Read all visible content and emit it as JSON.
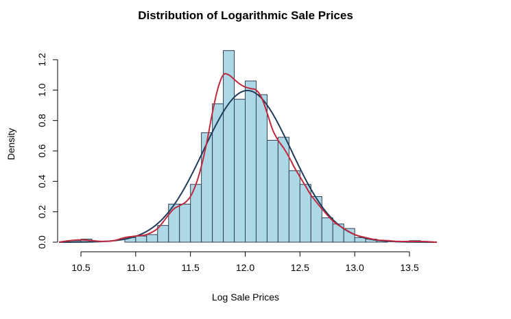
{
  "chart_data": {
    "type": "bar",
    "title": "Distribution of Logarithmic Sale Prices",
    "xlabel": "Log Sale Prices",
    "ylabel": "Density",
    "xlim": [
      10.3,
      13.75
    ],
    "ylim": [
      0,
      1.25
    ],
    "x_ticks": [
      "10.5",
      "11.0",
      "11.5",
      "12.0",
      "12.5",
      "13.0",
      "13.5"
    ],
    "y_ticks": [
      "0.0",
      "0.2",
      "0.4",
      "0.6",
      "0.8",
      "1.0",
      "1.2"
    ],
    "bin_width": 0.1,
    "bins": [
      {
        "start": 10.4,
        "end": 10.5,
        "density": 0.01
      },
      {
        "start": 10.5,
        "end": 10.6,
        "density": 0.02
      },
      {
        "start": 10.6,
        "end": 10.7,
        "density": 0.0
      },
      {
        "start": 10.7,
        "end": 10.8,
        "density": 0.0
      },
      {
        "start": 10.8,
        "end": 10.9,
        "density": 0.0
      },
      {
        "start": 10.9,
        "end": 11.0,
        "density": 0.03
      },
      {
        "start": 11.0,
        "end": 11.1,
        "density": 0.04
      },
      {
        "start": 11.1,
        "end": 11.2,
        "density": 0.05
      },
      {
        "start": 11.2,
        "end": 11.3,
        "density": 0.11
      },
      {
        "start": 11.3,
        "end": 11.4,
        "density": 0.25
      },
      {
        "start": 11.4,
        "end": 11.5,
        "density": 0.25
      },
      {
        "start": 11.5,
        "end": 11.6,
        "density": 0.38
      },
      {
        "start": 11.6,
        "end": 11.7,
        "density": 0.72
      },
      {
        "start": 11.7,
        "end": 11.8,
        "density": 0.91
      },
      {
        "start": 11.8,
        "end": 11.9,
        "density": 1.26
      },
      {
        "start": 11.9,
        "end": 12.0,
        "density": 0.94
      },
      {
        "start": 12.0,
        "end": 12.1,
        "density": 1.06
      },
      {
        "start": 12.1,
        "end": 12.2,
        "density": 0.97
      },
      {
        "start": 12.2,
        "end": 12.3,
        "density": 0.67
      },
      {
        "start": 12.3,
        "end": 12.4,
        "density": 0.69
      },
      {
        "start": 12.4,
        "end": 12.5,
        "density": 0.47
      },
      {
        "start": 12.5,
        "end": 12.6,
        "density": 0.38
      },
      {
        "start": 12.6,
        "end": 12.7,
        "density": 0.3
      },
      {
        "start": 12.7,
        "end": 12.8,
        "density": 0.16
      },
      {
        "start": 12.8,
        "end": 12.9,
        "density": 0.12
      },
      {
        "start": 12.9,
        "end": 13.0,
        "density": 0.09
      },
      {
        "start": 13.0,
        "end": 13.1,
        "density": 0.03
      },
      {
        "start": 13.1,
        "end": 13.2,
        "density": 0.02
      },
      {
        "start": 13.2,
        "end": 13.3,
        "density": 0.01
      },
      {
        "start": 13.3,
        "end": 13.4,
        "density": 0.0
      },
      {
        "start": 13.4,
        "end": 13.5,
        "density": 0.0
      },
      {
        "start": 13.5,
        "end": 13.6,
        "density": 0.01
      }
    ],
    "series": [
      {
        "color": "#c0283e",
        "x": [
          10.3,
          10.4,
          10.5,
          10.6,
          10.7,
          10.8,
          10.9,
          11.0,
          11.1,
          11.2,
          11.3,
          11.35,
          11.4,
          11.45,
          11.5,
          11.55,
          11.6,
          11.65,
          11.7,
          11.75,
          11.8,
          11.85,
          11.9,
          11.95,
          12.0,
          12.05,
          12.1,
          12.15,
          12.2,
          12.25,
          12.3,
          12.35,
          12.4,
          12.45,
          12.5,
          12.55,
          12.6,
          12.7,
          12.8,
          12.9,
          13.0,
          13.1,
          13.2,
          13.3,
          13.4,
          13.5,
          13.6,
          13.75
        ],
        "y": [
          0.0,
          0.01,
          0.015,
          0.01,
          0.005,
          0.01,
          0.03,
          0.04,
          0.05,
          0.09,
          0.18,
          0.22,
          0.24,
          0.26,
          0.3,
          0.38,
          0.5,
          0.66,
          0.85,
          1.01,
          1.1,
          1.1,
          1.07,
          1.04,
          1.02,
          1.01,
          1.0,
          0.95,
          0.85,
          0.74,
          0.67,
          0.62,
          0.56,
          0.49,
          0.43,
          0.37,
          0.31,
          0.22,
          0.14,
          0.09,
          0.05,
          0.03,
          0.015,
          0.01,
          0.005,
          0.005,
          0.005,
          0.0
        ]
      },
      {
        "color": "#1f3b5a",
        "mean": 12.02,
        "sd": 0.4
      }
    ]
  }
}
